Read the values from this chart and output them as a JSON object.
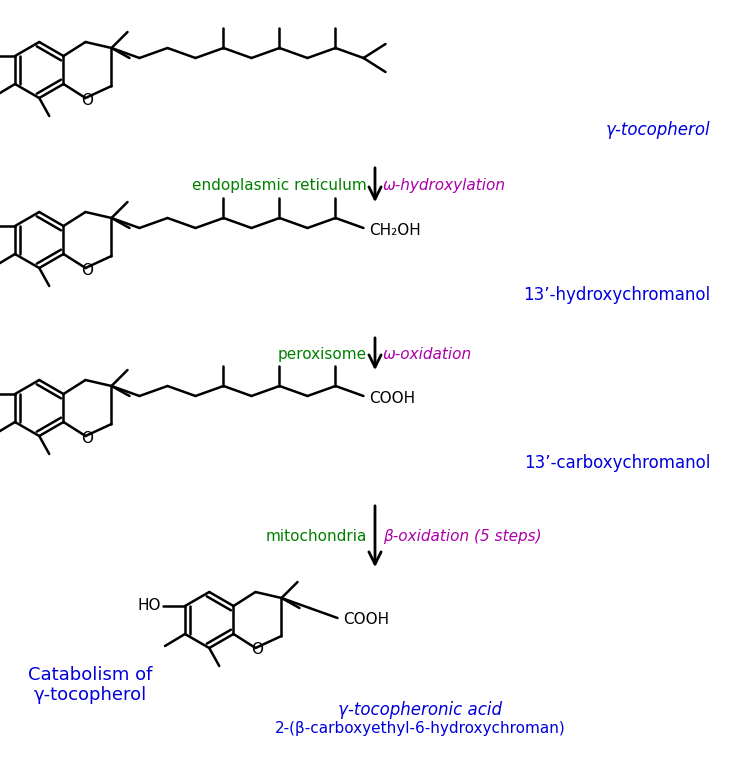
{
  "bg_color": "#ffffff",
  "fig_width": 7.42,
  "fig_height": 7.65,
  "dpi": 100,
  "labels": {
    "gamma_tocopherol": "γ-tocopherol",
    "hydroxy_chromanol": "13’-hydroxychromanol",
    "carboxy_chromanol": "13’-carboxychromanol",
    "tocopheronic_acid": "γ-tocopheronic acid",
    "tocopheronic_acid2": "2-(β-carboxyethyl-6-hydroxychroman)",
    "catabolism_line1": "Catabolism of",
    "catabolism_line2": "γ-tocopherol",
    "endoplasmic": "endoplasmic reticulum",
    "peroxisome": "peroxisome",
    "mitochondria": "mitochondria",
    "omega_hydrox": "ω-hydroxylation",
    "omega_oxid": "ω-oxidation",
    "beta_oxid": "β-oxidation (5 steps)"
  },
  "colors": {
    "green": "#008000",
    "purple": "#aa00aa",
    "blue": "#0000dd",
    "black": "#000000"
  },
  "struct": {
    "benz_side": 26,
    "lw": 1.8
  }
}
